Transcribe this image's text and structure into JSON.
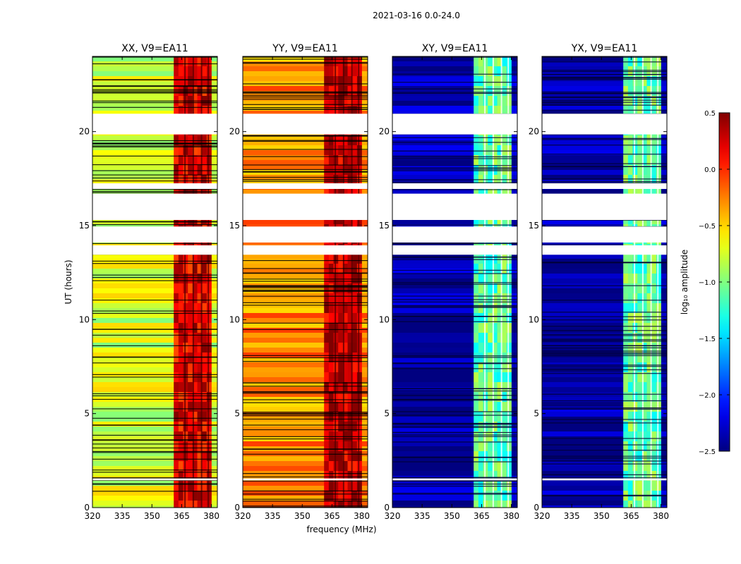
{
  "figure": {
    "suptitle": "2021-03-16 0.0-24.0",
    "xlabel": "frequency (MHz)",
    "ylabel": "UT (hours)"
  },
  "chart_data": {
    "type": "heatmap",
    "x": {
      "label": "frequency (MHz)",
      "lim": [
        320,
        383
      ],
      "ticks": [
        320,
        335,
        350,
        365,
        380
      ]
    },
    "y": {
      "label": "UT (hours)",
      "lim": [
        0,
        24
      ],
      "ticks": [
        0,
        5,
        10,
        15,
        20
      ]
    },
    "colorbar": {
      "label": "log₁₀ amplitude",
      "lim": [
        -2.5,
        0.5
      ],
      "ticks": [
        -2.5,
        -2.0,
        -1.5,
        -1.0,
        -0.5,
        0.0,
        0.5
      ],
      "tick_labels": [
        "−2.5",
        "−2.0",
        "−1.5",
        "−1.0",
        "−0.5",
        "0.0",
        "0.5"
      ],
      "colormap": "jet"
    },
    "flagged_ut_ranges": [
      [
        20.95,
        19.85
      ],
      [
        17.25,
        16.95
      ],
      [
        16.7,
        15.3
      ],
      [
        14.95,
        14.1
      ],
      [
        13.95,
        13.45
      ],
      [
        1.45,
        1.55
      ]
    ],
    "rfi_band_mhz": [
      361,
      380
    ],
    "panels": [
      {
        "title": "XX, V9=EA11",
        "base_level": -0.75,
        "band_level": 0.2
      },
      {
        "title": "YY, V9=EA11",
        "base_level": -0.3,
        "band_level": 0.3
      },
      {
        "title": "XY, V9=EA11",
        "base_level": -2.4,
        "band_level": -1.1
      },
      {
        "title": "YX, V9=EA11",
        "base_level": -2.4,
        "band_level": -1.1
      }
    ]
  }
}
